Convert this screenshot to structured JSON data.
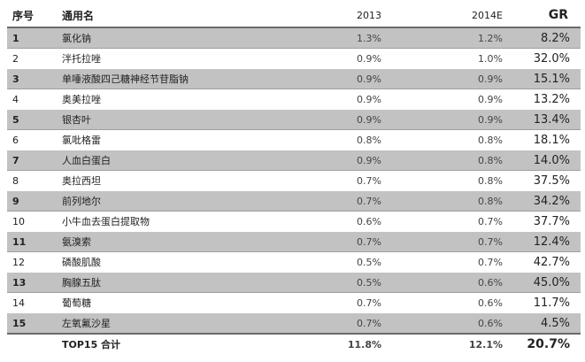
{
  "headers": {
    "index": "序号",
    "name": "通用名",
    "year1": "2013",
    "year2": "2014E",
    "growth": "GR"
  },
  "rows": [
    {
      "index": "1",
      "name": "氯化钠",
      "y2013": "1.3%",
      "y2014e": "1.2%",
      "gr": "8.2%"
    },
    {
      "index": "2",
      "name": "泮托拉唑",
      "y2013": "0.9%",
      "y2014e": "1.0%",
      "gr": "32.0%"
    },
    {
      "index": "3",
      "name": "单唾液酸四己糖神经节苷脂钠",
      "y2013": "0.9%",
      "y2014e": "0.9%",
      "gr": "15.1%"
    },
    {
      "index": "4",
      "name": "奥美拉唑",
      "y2013": "0.9%",
      "y2014e": "0.9%",
      "gr": "13.2%"
    },
    {
      "index": "5",
      "name": "银杏叶",
      "y2013": "0.9%",
      "y2014e": "0.9%",
      "gr": "13.4%"
    },
    {
      "index": "6",
      "name": "氯吡格雷",
      "y2013": "0.8%",
      "y2014e": "0.8%",
      "gr": "18.1%"
    },
    {
      "index": "7",
      "name": "人血白蛋白",
      "y2013": "0.9%",
      "y2014e": "0.8%",
      "gr": "14.0%"
    },
    {
      "index": "8",
      "name": "奥拉西坦",
      "y2013": "0.7%",
      "y2014e": "0.8%",
      "gr": "37.5%"
    },
    {
      "index": "9",
      "name": "前列地尔",
      "y2013": "0.7%",
      "y2014e": "0.8%",
      "gr": "34.2%"
    },
    {
      "index": "10",
      "name": "小牛血去蛋白提取物",
      "y2013": "0.6%",
      "y2014e": "0.7%",
      "gr": "37.7%"
    },
    {
      "index": "11",
      "name": "氨溴索",
      "y2013": "0.7%",
      "y2014e": "0.7%",
      "gr": "12.4%"
    },
    {
      "index": "12",
      "name": "磷酸肌酸",
      "y2013": "0.5%",
      "y2014e": "0.7%",
      "gr": "42.7%"
    },
    {
      "index": "13",
      "name": "胸腺五肽",
      "y2013": "0.5%",
      "y2014e": "0.6%",
      "gr": "45.0%"
    },
    {
      "index": "14",
      "name": "葡萄糖",
      "y2013": "0.7%",
      "y2014e": "0.6%",
      "gr": "11.7%"
    },
    {
      "index": "15",
      "name": "左氧氟沙星",
      "y2013": "0.7%",
      "y2014e": "0.6%",
      "gr": "4.5%"
    }
  ],
  "total": {
    "label": "TOP15 合计",
    "y2013": "11.8%",
    "y2014e": "12.1%",
    "gr": "20.7%"
  },
  "colors": {
    "shaded_row": "#c2c2c2",
    "rule": "#6a6a6a"
  }
}
